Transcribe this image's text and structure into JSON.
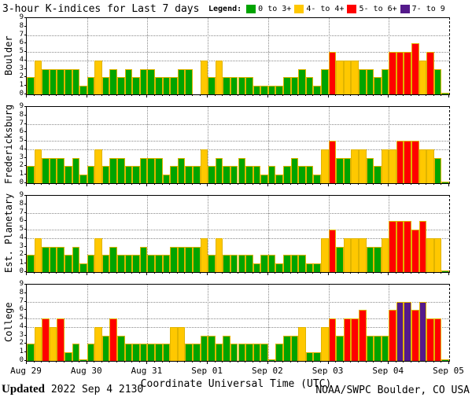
{
  "title": "3-hour K-indices for Last 7 days",
  "legend": {
    "label": "Legend:",
    "items": [
      {
        "label": "0 to 3+",
        "color": "#00a400"
      },
      {
        "label": "4- to 4+",
        "color": "#ffc800"
      },
      {
        "label": "5- to 6+",
        "color": "#ff0000"
      },
      {
        "label": "7- to 9",
        "color": "#551a8b"
      }
    ]
  },
  "x_axis": {
    "day_labels": [
      "Aug 29",
      "Aug 30",
      "Aug 31",
      "Sep 01",
      "Sep 02",
      "Sep 03",
      "Sep 04",
      "Sep 05"
    ],
    "title": "Coordinate Universal Time (UTC)"
  },
  "y_axis": {
    "min": 0,
    "max": 9,
    "dotted_gridlines_at": [
      4,
      5,
      7
    ]
  },
  "footer": {
    "updated_label": "Updated",
    "updated_value": " 2022 Sep  4 2130",
    "credit": "NOAA/SWPC Boulder, CO USA"
  },
  "chart_data": {
    "type": "bar",
    "title": "3-hour K-indices for Last 7 days",
    "hours_per_bar": 3,
    "bars_per_day": 8,
    "ylim": [
      0,
      9
    ],
    "color_rules": [
      {
        "range": "0 to 3+",
        "color": "#00a400"
      },
      {
        "range": "4- to 4+",
        "color": "#ffc800"
      },
      {
        "range": "5- to 6+",
        "color": "#ff0000"
      },
      {
        "range": "7- to 9",
        "color": "#551a8b"
      }
    ],
    "days": [
      "Aug 29",
      "Aug 30",
      "Aug 31",
      "Sep 01",
      "Sep 02",
      "Sep 03",
      "Sep 04"
    ],
    "stations": [
      {
        "name": "Boulder",
        "values": [
          2,
          4,
          3,
          3,
          3,
          3,
          3,
          1,
          2,
          4,
          2,
          3,
          2,
          3,
          2,
          3,
          3,
          2,
          2,
          2,
          3,
          3,
          0,
          4,
          2,
          4,
          2,
          2,
          2,
          2,
          1,
          1,
          1,
          1,
          2,
          2,
          3,
          2,
          1,
          3,
          5,
          4,
          4,
          4,
          3,
          3,
          2,
          3,
          5,
          5,
          5,
          6,
          4,
          5,
          3,
          0.2
        ]
      },
      {
        "name": "Fredericksburg",
        "values": [
          2,
          4,
          3,
          3,
          3,
          2,
          3,
          1,
          2,
          4,
          2,
          3,
          3,
          2,
          2,
          3,
          3,
          3,
          1,
          2,
          3,
          2,
          2,
          4,
          2,
          3,
          2,
          2,
          3,
          2,
          2,
          1,
          2,
          1,
          2,
          3,
          2,
          2,
          1,
          4,
          5,
          3,
          3,
          4,
          4,
          3,
          2,
          4,
          4,
          5,
          5,
          5,
          4,
          4,
          3,
          0.2
        ]
      },
      {
        "name": "Est. Planetary",
        "values": [
          2,
          4,
          3,
          3,
          3,
          2,
          3,
          1,
          2,
          4,
          2,
          3,
          2,
          2,
          2,
          3,
          2,
          2,
          2,
          3,
          3,
          3,
          3,
          4,
          2,
          4,
          2,
          2,
          2,
          2,
          1,
          2,
          2,
          1,
          2,
          2,
          2,
          1,
          1,
          4,
          5,
          3,
          4,
          4,
          4,
          3,
          3,
          4,
          6,
          6,
          6,
          5,
          6,
          4,
          4,
          0.2
        ]
      },
      {
        "name": "College",
        "values": [
          2,
          4,
          5,
          4,
          5,
          1,
          2,
          0.2,
          2,
          4,
          3,
          5,
          3,
          2,
          2,
          2,
          2,
          2,
          2,
          4,
          4,
          2,
          2,
          3,
          3,
          2,
          3,
          2,
          2,
          2,
          2,
          2,
          0.2,
          2,
          3,
          3,
          4,
          1,
          1,
          4,
          5,
          3,
          5,
          5,
          6,
          3,
          3,
          3,
          6,
          7,
          7,
          6,
          7,
          5,
          5,
          0.2
        ]
      }
    ]
  }
}
